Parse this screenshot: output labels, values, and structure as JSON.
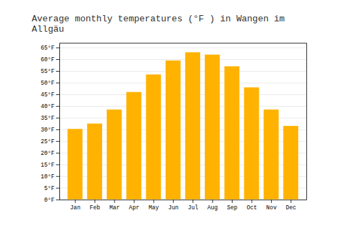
{
  "chart_data": {
    "type": "bar",
    "title": "Average monthly temperatures (°F ) in Wangen im Allgäu",
    "categories": [
      "Jan",
      "Feb",
      "Mar",
      "Apr",
      "May",
      "Jun",
      "Jul",
      "Aug",
      "Sep",
      "Oct",
      "Nov",
      "Dec"
    ],
    "values": [
      30.2,
      32.5,
      38.5,
      46.0,
      53.5,
      59.5,
      63.0,
      62.0,
      57.0,
      48.0,
      38.5,
      31.5
    ],
    "color": "#FFB300",
    "ylim": [
      0,
      67
    ],
    "yticks": [
      {
        "value": 0,
        "label": "0°F"
      },
      {
        "value": 5,
        "label": "5°F"
      },
      {
        "value": 10,
        "label": "10°F"
      },
      {
        "value": 15,
        "label": "15°F"
      },
      {
        "value": 20,
        "label": "20°F"
      },
      {
        "value": 25,
        "label": "25°F"
      },
      {
        "value": 30,
        "label": "30°F"
      },
      {
        "value": 35,
        "label": "35°F"
      },
      {
        "value": 40,
        "label": "40°F"
      },
      {
        "value": 45,
        "label": "45°F"
      },
      {
        "value": 50,
        "label": "50°F"
      },
      {
        "value": 55,
        "label": "55°F"
      },
      {
        "value": 60,
        "label": "60°F"
      },
      {
        "value": 65,
        "label": "65°F"
      }
    ],
    "grid": true
  }
}
